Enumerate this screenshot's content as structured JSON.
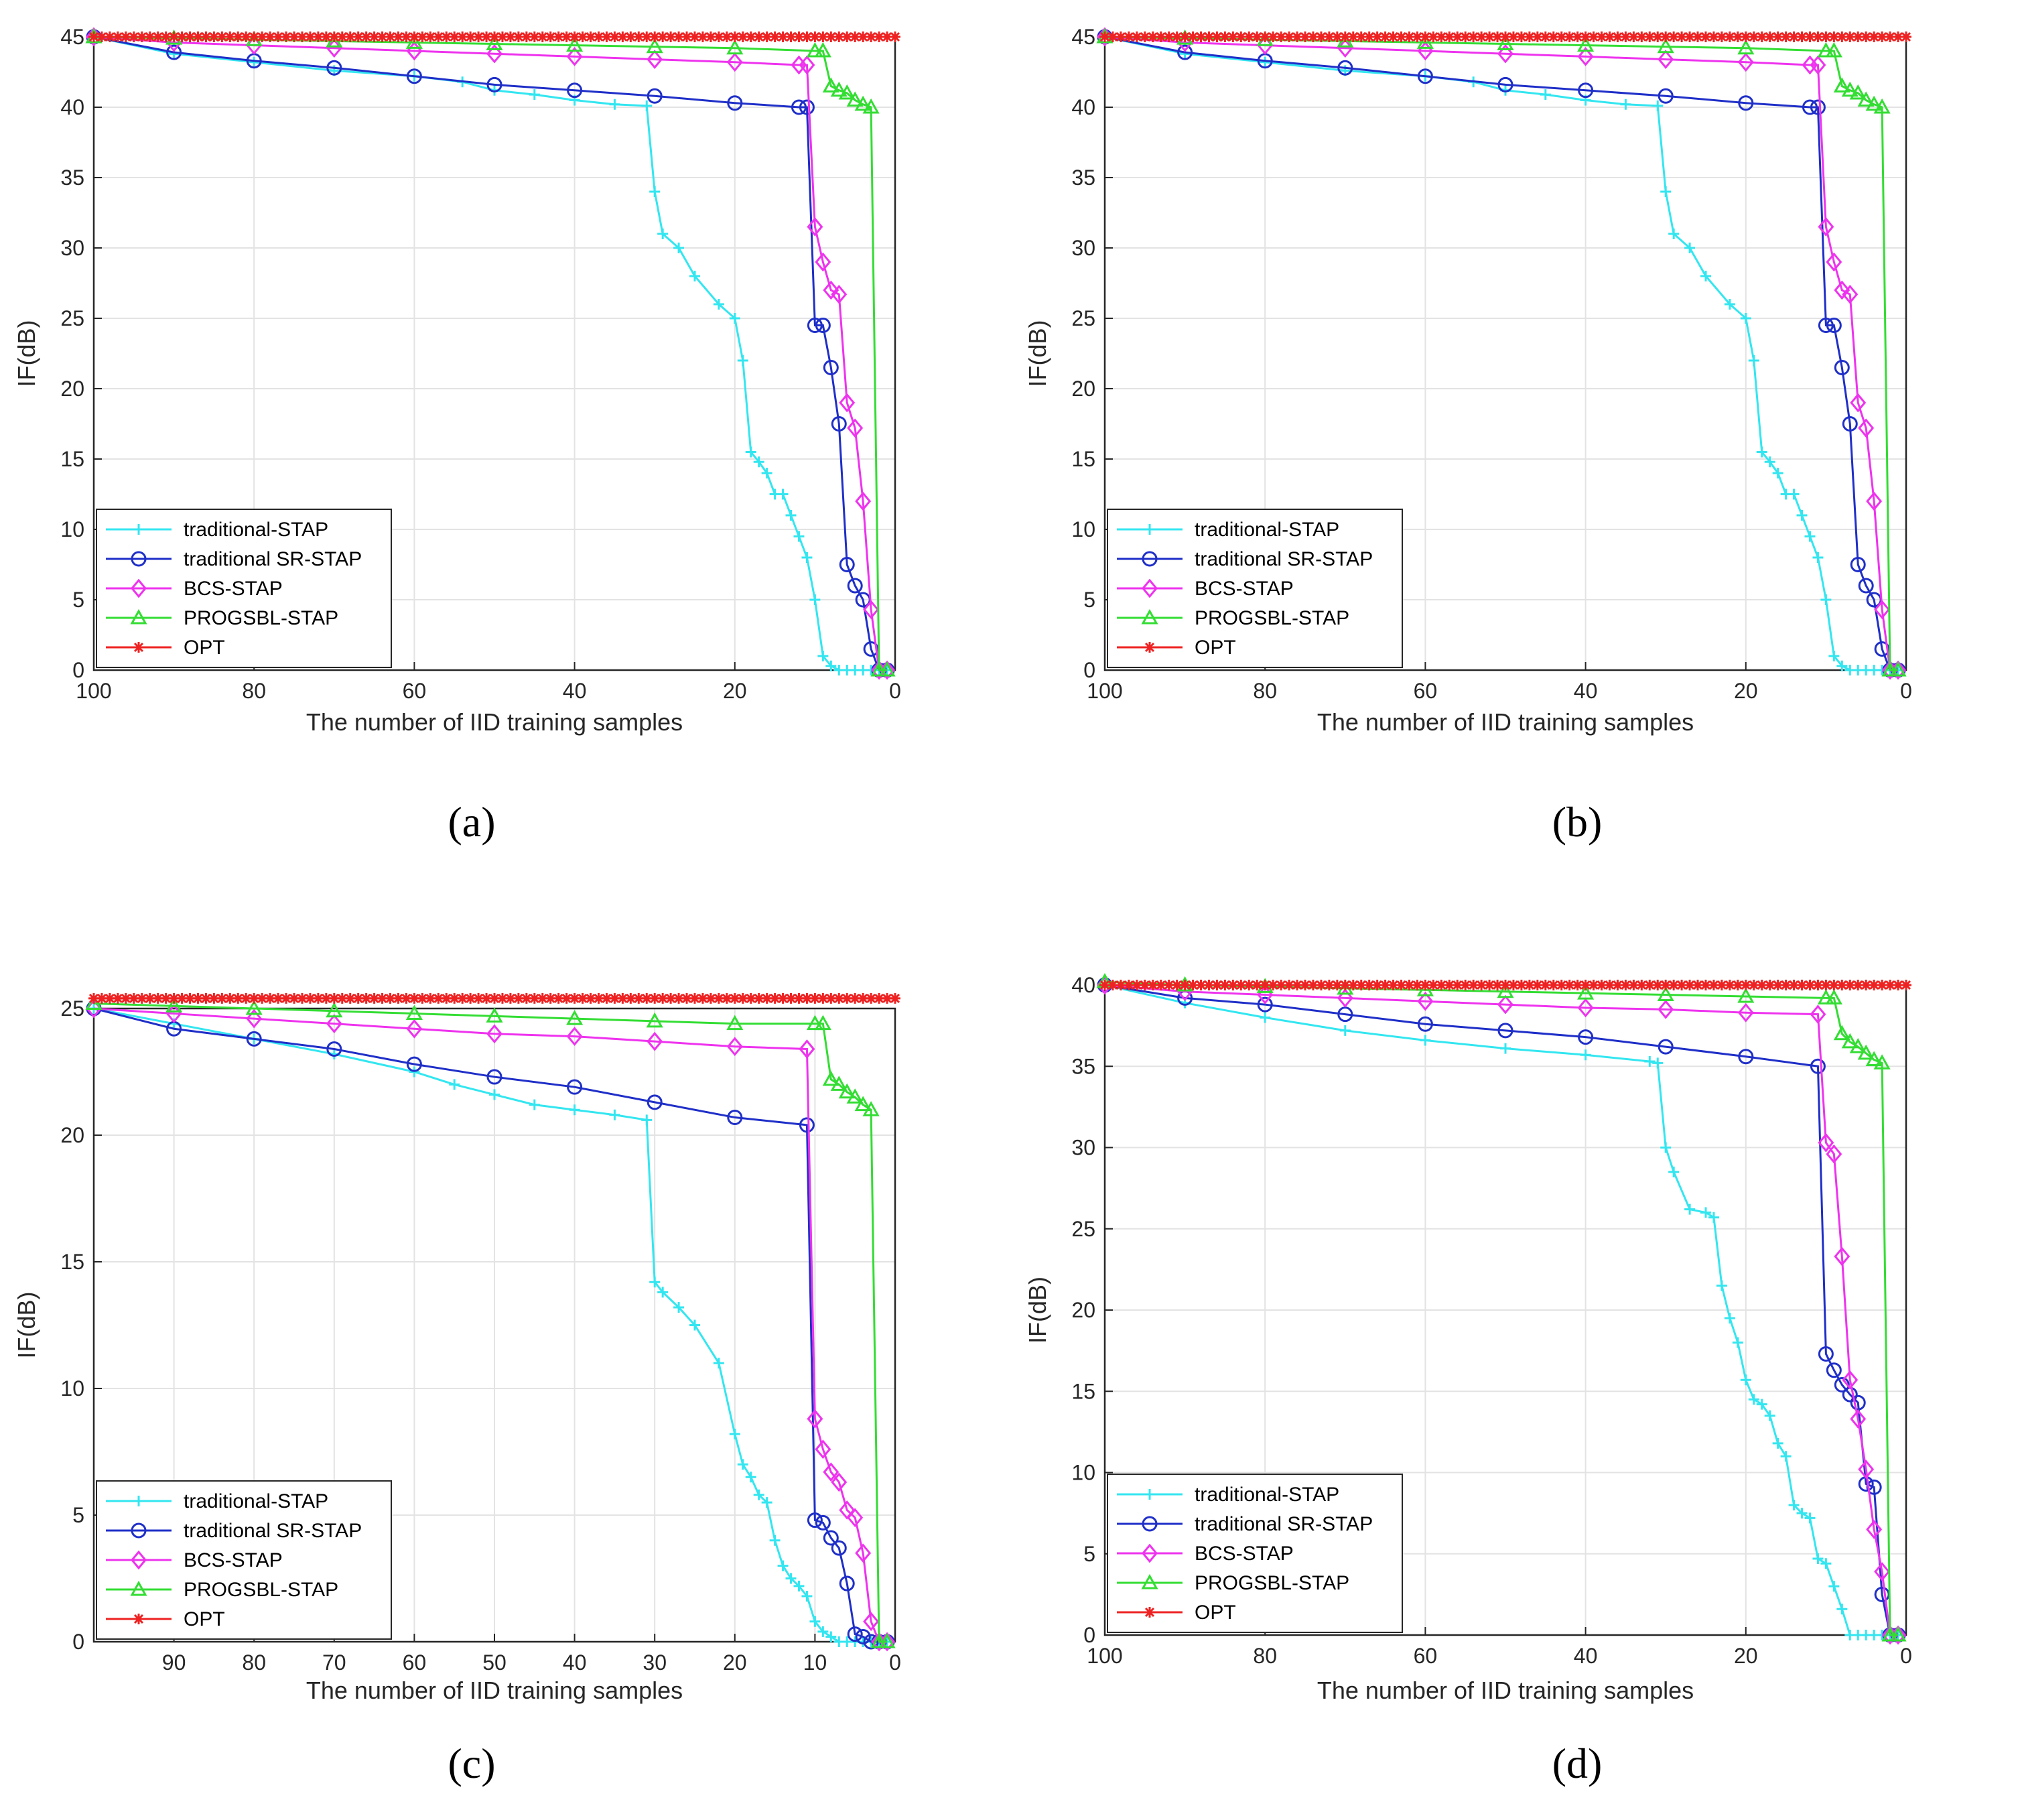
{
  "chart_data": [
    {
      "type": "line",
      "panel_id": "a",
      "caption": "(a)",
      "xlabel": "The number of IID training samples",
      "ylabel": "IF(dB)",
      "xlim": [
        100,
        0
      ],
      "ylim": [
        0,
        45
      ],
      "xticks": [
        100,
        80,
        60,
        40,
        20,
        0
      ],
      "yticks": [
        0,
        5,
        10,
        15,
        20,
        25,
        30,
        35,
        40,
        45
      ],
      "grid": true,
      "legend_position": "bottom-left",
      "series": [
        {
          "name": "traditional-STAP",
          "color": "#33e6f0",
          "marker": "plus",
          "x": [
            100,
            90,
            80,
            70,
            60,
            54,
            50,
            45,
            40,
            35,
            31,
            30,
            29,
            27,
            25,
            22,
            20,
            19,
            18,
            17,
            16,
            15,
            14,
            13,
            12,
            11,
            10,
            9,
            8,
            7,
            6,
            5,
            4,
            3,
            2,
            1
          ],
          "y": [
            45,
            43.8,
            43.2,
            42.6,
            42.2,
            41.8,
            41.2,
            40.9,
            40.5,
            40.2,
            40.1,
            34,
            31,
            30,
            28,
            26,
            25,
            22,
            15.5,
            14.8,
            14,
            12.5,
            12.5,
            11,
            9.5,
            8,
            5,
            1,
            0.3,
            0,
            0,
            0,
            0,
            0,
            0,
            0
          ]
        },
        {
          "name": "traditional SR-STAP",
          "color": "#1f2fc8",
          "marker": "circle",
          "x": [
            100,
            90,
            80,
            70,
            60,
            50,
            40,
            30,
            20,
            12,
            11,
            10,
            9,
            8,
            7,
            6,
            5,
            4,
            3,
            2,
            1
          ],
          "y": [
            45,
            43.9,
            43.3,
            42.8,
            42.2,
            41.6,
            41.2,
            40.8,
            40.3,
            40,
            40,
            24.5,
            24.5,
            21.5,
            17.5,
            7.5,
            6,
            5,
            1.5,
            0,
            0
          ]
        },
        {
          "name": "BCS-STAP",
          "color": "#ee33ee",
          "marker": "diamond",
          "x": [
            100,
            90,
            80,
            70,
            60,
            50,
            40,
            30,
            20,
            12,
            11,
            10,
            9,
            8,
            7,
            6,
            5,
            4,
            3,
            2,
            1
          ],
          "y": [
            45,
            44.6,
            44.4,
            44.2,
            44,
            43.8,
            43.6,
            43.4,
            43.2,
            43,
            43,
            31.5,
            29,
            27,
            26.7,
            19,
            17.2,
            12,
            4.3,
            0,
            0
          ]
        },
        {
          "name": "PROGSBL-STAP",
          "color": "#33dd33",
          "marker": "triangle",
          "x": [
            100,
            90,
            80,
            70,
            60,
            50,
            40,
            30,
            20,
            10,
            9,
            8,
            7,
            6,
            5,
            4,
            3,
            2,
            1
          ],
          "y": [
            45,
            44.9,
            44.8,
            44.7,
            44.6,
            44.5,
            44.4,
            44.3,
            44.2,
            44,
            44,
            41.5,
            41.2,
            41,
            40.5,
            40.2,
            40,
            0,
            0
          ]
        },
        {
          "name": "OPT",
          "color": "#ee2222",
          "marker": "star",
          "x": [
            100,
            0
          ],
          "y": [
            45,
            45
          ]
        }
      ]
    },
    {
      "type": "line",
      "panel_id": "b",
      "caption": "(b)",
      "xlabel": "The number of IID training samples",
      "ylabel": "IF(dB)",
      "xlim": [
        100,
        0
      ],
      "ylim": [
        0,
        45
      ],
      "xticks": [
        100,
        80,
        60,
        40,
        20,
        0
      ],
      "yticks": [
        0,
        5,
        10,
        15,
        20,
        25,
        30,
        35,
        40,
        45
      ],
      "grid": true,
      "legend_position": "bottom-left",
      "series": [
        {
          "name": "traditional-STAP",
          "color": "#33e6f0",
          "marker": "plus",
          "x": [
            100,
            90,
            80,
            70,
            60,
            54,
            50,
            45,
            40,
            35,
            31,
            30,
            29,
            27,
            25,
            22,
            20,
            19,
            18,
            17,
            16,
            15,
            14,
            13,
            12,
            11,
            10,
            9,
            8,
            7,
            6,
            5,
            4,
            3,
            2,
            1
          ],
          "y": [
            45,
            43.8,
            43.2,
            42.6,
            42.2,
            41.8,
            41.2,
            40.9,
            40.5,
            40.2,
            40.1,
            34,
            31,
            30,
            28,
            26,
            25,
            22,
            15.5,
            14.8,
            14,
            12.5,
            12.5,
            11,
            9.5,
            8,
            5,
            1,
            0.3,
            0,
            0,
            0,
            0,
            0,
            0,
            0
          ]
        },
        {
          "name": "traditional SR-STAP",
          "color": "#1f2fc8",
          "marker": "circle",
          "x": [
            100,
            90,
            80,
            70,
            60,
            50,
            40,
            30,
            20,
            12,
            11,
            10,
            9,
            8,
            7,
            6,
            5,
            4,
            3,
            2,
            1
          ],
          "y": [
            45,
            43.9,
            43.3,
            42.8,
            42.2,
            41.6,
            41.2,
            40.8,
            40.3,
            40,
            40,
            24.5,
            24.5,
            21.5,
            17.5,
            7.5,
            6,
            5,
            1.5,
            0,
            0
          ]
        },
        {
          "name": "BCS-STAP",
          "color": "#ee33ee",
          "marker": "diamond",
          "x": [
            100,
            90,
            80,
            70,
            60,
            50,
            40,
            30,
            20,
            12,
            11,
            10,
            9,
            8,
            7,
            6,
            5,
            4,
            3,
            2,
            1
          ],
          "y": [
            45,
            44.6,
            44.4,
            44.2,
            44,
            43.8,
            43.6,
            43.4,
            43.2,
            43,
            43,
            31.5,
            29,
            27,
            26.7,
            19,
            17.2,
            12,
            4.3,
            0,
            0
          ]
        },
        {
          "name": "PROGSBL-STAP",
          "color": "#33dd33",
          "marker": "triangle",
          "x": [
            100,
            90,
            80,
            70,
            60,
            50,
            40,
            30,
            20,
            10,
            9,
            8,
            7,
            6,
            5,
            4,
            3,
            2,
            1
          ],
          "y": [
            45,
            44.9,
            44.8,
            44.7,
            44.6,
            44.5,
            44.4,
            44.3,
            44.2,
            44,
            44,
            41.5,
            41.2,
            41,
            40.5,
            40.2,
            40,
            0,
            0
          ]
        },
        {
          "name": "OPT",
          "color": "#ee2222",
          "marker": "star",
          "x": [
            100,
            0
          ],
          "y": [
            45,
            45
          ]
        }
      ]
    },
    {
      "type": "line",
      "panel_id": "c",
      "caption": "(c)",
      "xlabel": "The number of IID training samples",
      "ylabel": "IF(dB)",
      "xlim": [
        100,
        0
      ],
      "ylim": [
        0,
        25
      ],
      "xticks": [
        90,
        80,
        70,
        60,
        50,
        40,
        30,
        20,
        10,
        0
      ],
      "yticks": [
        0,
        5,
        10,
        15,
        20,
        25
      ],
      "grid": true,
      "legend_position": "bottom-left",
      "series": [
        {
          "name": "traditional-STAP",
          "color": "#33e6f0",
          "marker": "plus",
          "x": [
            100,
            90,
            80,
            70,
            60,
            55,
            50,
            45,
            40,
            35,
            31,
            30,
            29,
            27,
            25,
            22,
            20,
            19,
            18,
            17,
            16,
            15,
            14,
            13,
            12,
            11,
            10,
            9,
            8,
            7,
            6,
            5,
            4,
            3,
            2,
            1
          ],
          "y": [
            25,
            24.4,
            23.8,
            23.2,
            22.5,
            22,
            21.6,
            21.2,
            21,
            20.8,
            20.6,
            14.2,
            13.8,
            13.2,
            12.5,
            11,
            8.2,
            7,
            6.5,
            5.8,
            5.5,
            4,
            3,
            2.5,
            2.2,
            1.8,
            0.8,
            0.4,
            0.2,
            0,
            0,
            0,
            0,
            0,
            0,
            0
          ]
        },
        {
          "name": "traditional SR-STAP",
          "color": "#1f2fc8",
          "marker": "circle",
          "x": [
            100,
            90,
            80,
            70,
            60,
            50,
            40,
            30,
            20,
            11,
            10,
            9,
            8,
            7,
            6,
            5,
            4,
            3,
            2,
            1
          ],
          "y": [
            25,
            24.2,
            23.8,
            23.4,
            22.8,
            22.3,
            21.9,
            21.3,
            20.7,
            20.4,
            4.8,
            4.7,
            4.1,
            3.7,
            2.3,
            0.3,
            0.2,
            0,
            0,
            0
          ]
        },
        {
          "name": "BCS-STAP",
          "color": "#ee33ee",
          "marker": "diamond",
          "x": [
            100,
            90,
            80,
            70,
            60,
            50,
            40,
            30,
            20,
            11,
            10,
            9,
            8,
            7,
            6,
            5,
            4,
            3,
            2,
            1
          ],
          "y": [
            25,
            24.8,
            24.6,
            24.4,
            24.2,
            24,
            23.9,
            23.7,
            23.5,
            23.4,
            8.8,
            7.6,
            6.7,
            6.3,
            5.2,
            4.9,
            3.5,
            0.8,
            0,
            0
          ]
        },
        {
          "name": "PROGSBL-STAP",
          "color": "#33dd33",
          "marker": "triangle",
          "x": [
            100,
            90,
            80,
            70,
            60,
            50,
            40,
            30,
            20,
            10,
            9,
            8,
            7,
            6,
            5,
            4,
            3,
            2,
            1
          ],
          "y": [
            25.2,
            25.1,
            25,
            24.9,
            24.8,
            24.7,
            24.6,
            24.5,
            24.4,
            24.4,
            24.4,
            22.2,
            22,
            21.7,
            21.5,
            21.2,
            21,
            0,
            0
          ]
        },
        {
          "name": "OPT",
          "color": "#ee2222",
          "marker": "star",
          "x": [
            100,
            0
          ],
          "y": [
            25.4,
            25.4
          ]
        }
      ]
    },
    {
      "type": "line",
      "panel_id": "d",
      "caption": "(d)",
      "xlabel": "The number of IID training samples",
      "ylabel": "IF(dB)",
      "xlim": [
        100,
        0
      ],
      "ylim": [
        0,
        40
      ],
      "xticks": [
        100,
        80,
        60,
        40,
        20,
        0
      ],
      "yticks": [
        0,
        5,
        10,
        15,
        20,
        25,
        30,
        35,
        40
      ],
      "grid": true,
      "legend_position": "bottom-left",
      "series": [
        {
          "name": "traditional-STAP",
          "color": "#33e6f0",
          "marker": "plus",
          "x": [
            100,
            90,
            80,
            70,
            60,
            50,
            40,
            32,
            31,
            30,
            29,
            27,
            25,
            24,
            23,
            22,
            21,
            20,
            19,
            18,
            17,
            16,
            15,
            14,
            13,
            12,
            11,
            10,
            9,
            8,
            7,
            6,
            5,
            4,
            3,
            2,
            1
          ],
          "y": [
            40,
            38.9,
            38,
            37.2,
            36.6,
            36.1,
            35.7,
            35.3,
            35.2,
            30,
            28.5,
            26.2,
            26,
            25.7,
            21.5,
            19.5,
            18,
            15.7,
            14.5,
            14.2,
            13.5,
            11.8,
            11,
            8,
            7.5,
            7.2,
            4.7,
            4.4,
            3,
            1.6,
            0,
            0,
            0,
            0,
            0,
            0,
            0
          ]
        },
        {
          "name": "traditional SR-STAP",
          "color": "#1f2fc8",
          "marker": "circle",
          "x": [
            100,
            90,
            80,
            70,
            60,
            50,
            40,
            30,
            20,
            11,
            10,
            9,
            8,
            7,
            6,
            5,
            4,
            3,
            2,
            1
          ],
          "y": [
            40,
            39.2,
            38.8,
            38.2,
            37.6,
            37.2,
            36.8,
            36.2,
            35.6,
            35,
            17.3,
            16.3,
            15.4,
            14.8,
            14.3,
            9.3,
            9.1,
            2.5,
            0,
            0
          ]
        },
        {
          "name": "BCS-STAP",
          "color": "#ee33ee",
          "marker": "diamond",
          "x": [
            100,
            90,
            80,
            70,
            60,
            50,
            40,
            30,
            20,
            11,
            10,
            9,
            8,
            7,
            6,
            5,
            4,
            3,
            2,
            1
          ],
          "y": [
            40,
            39.6,
            39.4,
            39.2,
            39,
            38.8,
            38.6,
            38.5,
            38.3,
            38.2,
            30.3,
            29.6,
            23.3,
            15.7,
            13.3,
            10.2,
            6.5,
            3.9,
            0,
            0
          ]
        },
        {
          "name": "PROGSBL-STAP",
          "color": "#33dd33",
          "marker": "triangle",
          "x": [
            100,
            90,
            80,
            70,
            60,
            50,
            40,
            30,
            20,
            10,
            9,
            8,
            7,
            6,
            5,
            4,
            3,
            2,
            1
          ],
          "y": [
            40.2,
            40,
            39.9,
            39.8,
            39.7,
            39.6,
            39.5,
            39.4,
            39.3,
            39.2,
            39.2,
            37,
            36.5,
            36.2,
            35.8,
            35.4,
            35.2,
            0,
            0
          ]
        },
        {
          "name": "OPT",
          "color": "#ee2222",
          "marker": "star",
          "x": [
            100,
            0
          ],
          "y": [
            40,
            40
          ]
        }
      ]
    }
  ]
}
